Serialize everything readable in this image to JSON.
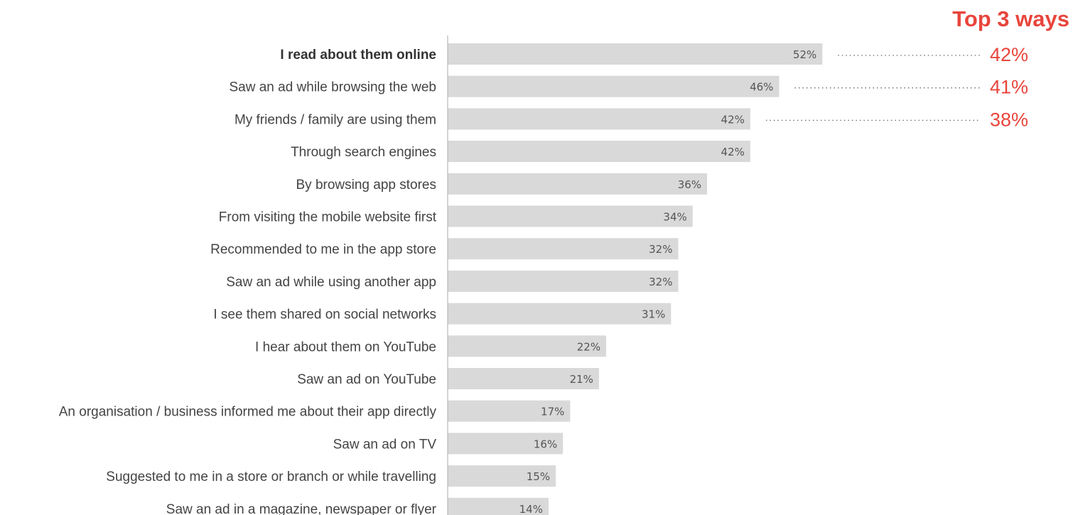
{
  "chart_data": {
    "type": "bar",
    "orientation": "horizontal",
    "categories": [
      "I read about them online",
      "Saw an ad while browsing the web",
      "My friends / family are using them",
      "Through search engines",
      "By browsing app stores",
      "From visiting the mobile website first",
      "Recommended to me in the app store",
      "Saw an ad while using another app",
      "I see them shared on social networks",
      "I hear about them on YouTube",
      "Saw an ad on YouTube",
      "An organisation / business informed me about their app directly",
      "Saw an ad on TV",
      "Suggested to me in a store or branch or while travelling",
      "Saw an ad in a magazine, newspaper or flyer"
    ],
    "values": [
      52,
      46,
      42,
      42,
      36,
      34,
      32,
      32,
      31,
      22,
      21,
      17,
      16,
      15,
      14
    ],
    "value_labels": [
      "52%",
      "46%",
      "42%",
      "42%",
      "36%",
      "34%",
      "32%",
      "32%",
      "31%",
      "22%",
      "21%",
      "17%",
      "16%",
      "15%",
      "14%"
    ],
    "bold_categories": [
      "I read about them online"
    ],
    "xlim": [
      0,
      100
    ],
    "grid": false,
    "annotation": {
      "title": "Top 3 ways",
      "values": [
        42,
        41,
        38
      ],
      "value_labels": [
        "42%",
        "41%",
        "38%"
      ]
    }
  },
  "colors": {
    "bar": "#d9d9d9",
    "axis": "#aaaaaa",
    "accent": "#e8453c",
    "dots": "#666666",
    "label": "#444444"
  }
}
